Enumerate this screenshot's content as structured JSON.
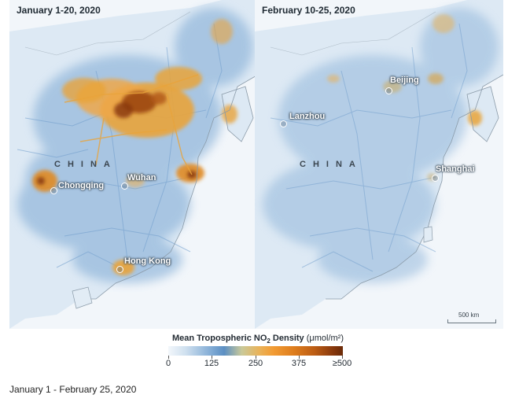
{
  "panels": [
    {
      "title": "January 1-20, 2020",
      "country_label": "CHINA",
      "cities": [
        "Chongqing",
        "Wuhan",
        "Hong Kong"
      ]
    },
    {
      "title": "February 10-25, 2020",
      "country_label": "CHINA",
      "cities": [
        "Beijing",
        "Lanzhou",
        "Shanghai"
      ]
    }
  ],
  "scale_bar": {
    "label": "500 km"
  },
  "legend": {
    "title_prefix": "Mean Tropospheric NO",
    "title_sub": "2",
    "title_suffix": " Density ",
    "units": "(μmol/m²)",
    "ticks": [
      "0",
      "125",
      "250",
      "375",
      "≥500"
    ],
    "colors": [
      "#f3f7fb",
      "#7faad4",
      "#e9b35a",
      "#de7d1d",
      "#6a2a08"
    ]
  },
  "caption": "January 1 - February 25, 2020"
}
